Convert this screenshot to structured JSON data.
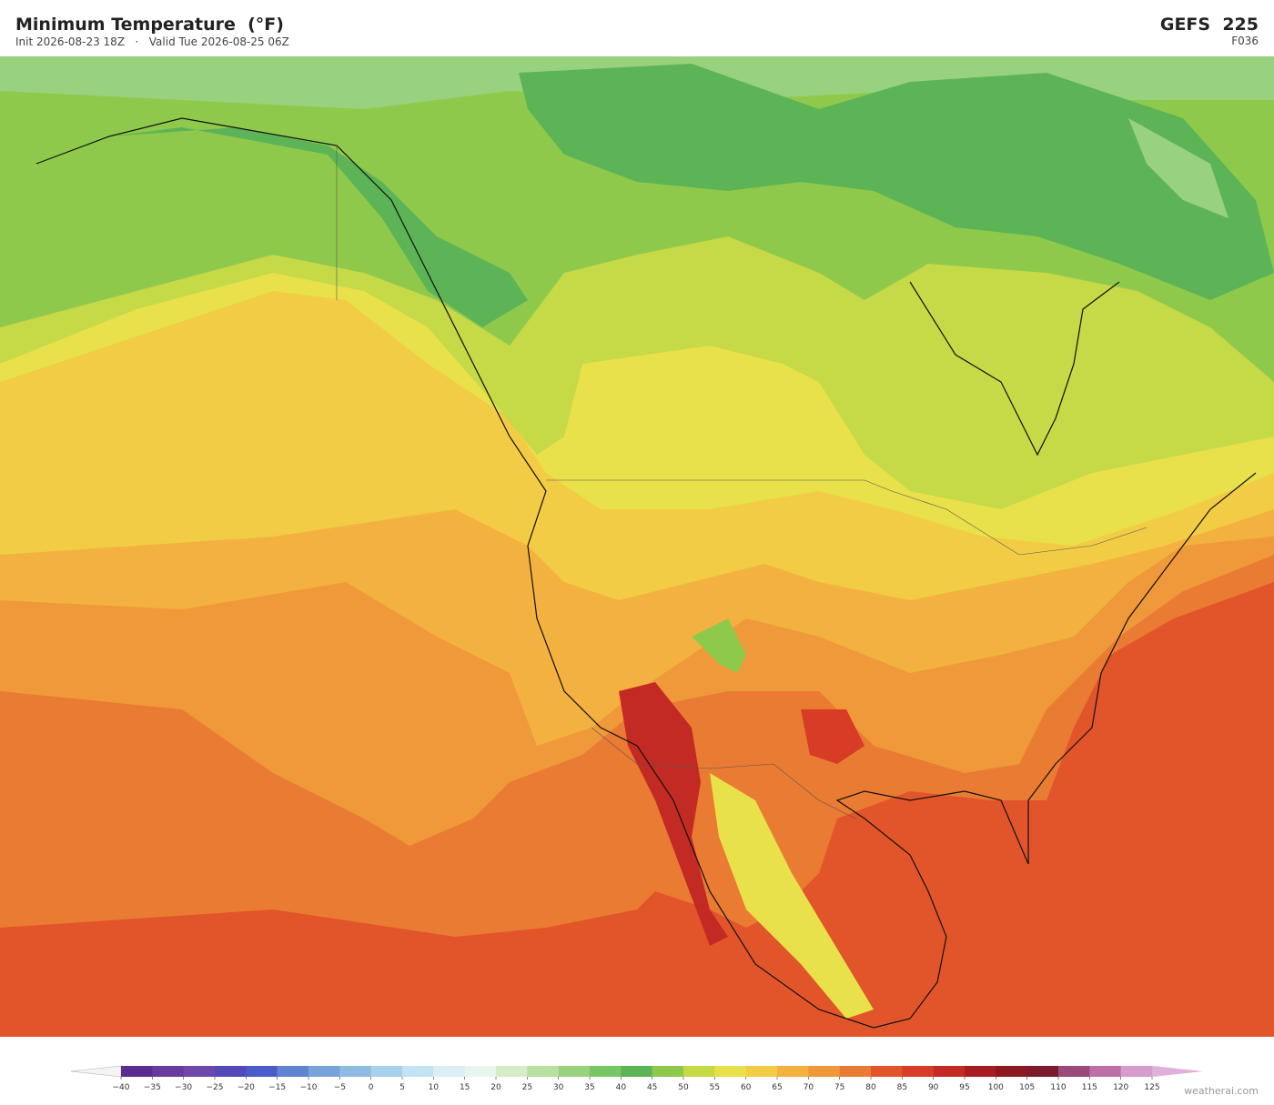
{
  "header": {
    "title": "Minimum Temperature  (°F)",
    "init": "Init 2026-08-23 18Z",
    "separator": "·",
    "valid": "Valid Tue 2026-08-25 06Z",
    "model": "GEFS  225",
    "forecast_hour": "F036"
  },
  "colorbar": {
    "ticks": [
      {
        "value": -40,
        "label": "−40"
      },
      {
        "value": -35,
        "label": "−35"
      },
      {
        "value": -30,
        "label": "−30"
      },
      {
        "value": -25,
        "label": "−25"
      },
      {
        "value": -20,
        "label": "−20"
      },
      {
        "value": -15,
        "label": "−15"
      },
      {
        "value": -10,
        "label": "−10"
      },
      {
        "value": -5,
        "label": "−5"
      },
      0,
      5,
      10,
      15,
      20,
      25,
      30,
      35,
      40,
      45,
      50,
      55,
      60,
      65,
      70,
      75,
      80,
      85,
      90,
      95,
      100,
      105,
      110,
      115,
      120,
      125
    ],
    "colors": [
      "#5a2d91",
      "#6a3a9e",
      "#6f48ac",
      "#5548b8",
      "#4a5cc9",
      "#5f84d1",
      "#78a2da",
      "#8fbbe3",
      "#a7d0ec",
      "#c3e2f2",
      "#dbeef5",
      "#e8f5ec",
      "#d4ecc8",
      "#b8e0a0",
      "#98d27e",
      "#79c665",
      "#5cb456",
      "#8fc94c",
      "#c6d947",
      "#e8e14a",
      "#f3cc45",
      "#f3b23f",
      "#f0993a",
      "#ea7b33",
      "#e2552b",
      "#d83b26",
      "#c42a24",
      "#a61d22",
      "#8c1820",
      "#7a1a2a",
      "#9a4a7a",
      "#bd6fa6",
      "#d59ccc"
    ],
    "under_color": "#f4f4f4",
    "over_color": "#e0b0d8"
  },
  "watermark": "weatherai.com"
}
